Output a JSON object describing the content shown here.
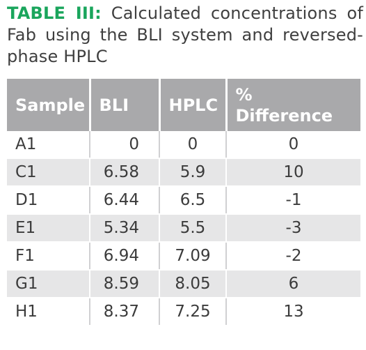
{
  "caption": {
    "label": "TABLE III:",
    "text": " Calculated concentrations of Fab using the BLI system and reversed-phase HPLC"
  },
  "table": {
    "headers": [
      "Sample",
      "BLI",
      "HPLC",
      "% Difference"
    ],
    "rows": [
      [
        "A1",
        "0",
        "0",
        "0"
      ],
      [
        "C1",
        "6.58",
        "5.9",
        "10"
      ],
      [
        "D1",
        "6.44",
        "6.5",
        "-1"
      ],
      [
        "E1",
        "5.34",
        "5.5",
        "-3"
      ],
      [
        "F1",
        "6.94",
        "7.09",
        "-2"
      ],
      [
        "G1",
        "8.59",
        "8.05",
        "6"
      ],
      [
        "H1",
        "8.37",
        "7.25",
        "13"
      ]
    ]
  },
  "colors": {
    "label": "#1aa55c",
    "header_bg": "#a9a9ab",
    "stripe_bg": "#e6e6e7"
  }
}
